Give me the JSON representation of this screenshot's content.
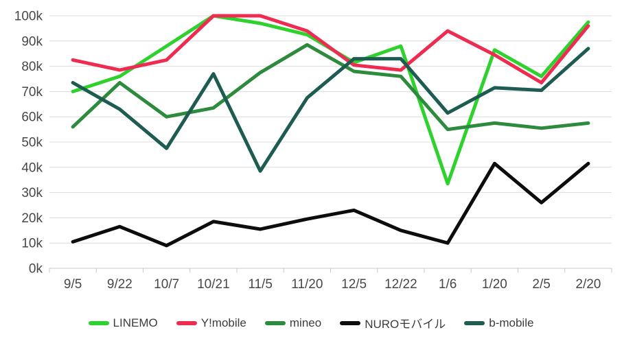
{
  "page": {
    "background": "#ffffff"
  },
  "chart_data": {
    "type": "line",
    "title": "",
    "xlabel": "",
    "ylabel": "",
    "unit": "thousands (k)",
    "categories": [
      "9/5",
      "9/22",
      "10/7",
      "10/21",
      "11/5",
      "11/20",
      "12/5",
      "12/22",
      "1/6",
      "1/20",
      "2/5",
      "2/20"
    ],
    "series": [
      {
        "name": "LINEMO",
        "color": "#2ed12e",
        "values": [
          70,
          76,
          88,
          100,
          97,
          92.5,
          81.5,
          88,
          33.5,
          86.5,
          76,
          97.5
        ]
      },
      {
        "name": "Y!mobile",
        "color": "#ee2c52",
        "values": [
          82.5,
          78.5,
          82.5,
          100,
          100,
          94,
          80.5,
          78.5,
          94,
          84.5,
          73.5,
          96
        ]
      },
      {
        "name": "mineo",
        "color": "#2e8b3e",
        "values": [
          56,
          73.5,
          60,
          63.5,
          77.5,
          88.5,
          78,
          76,
          55,
          57.5,
          55.5,
          57.5
        ]
      },
      {
        "name": "NUROモバイル",
        "color": "#0d0d0d",
        "values": [
          10.5,
          16.5,
          9,
          18.5,
          15.5,
          19.5,
          23,
          15,
          10,
          41.5,
          26,
          41.5
        ]
      },
      {
        "name": "b-mobile",
        "color": "#1e5b50",
        "values": [
          73.5,
          63,
          47.5,
          77,
          38.5,
          67.5,
          83,
          83,
          61.5,
          71.5,
          70.5,
          87
        ]
      }
    ],
    "ylim": [
      0,
      100
    ],
    "ytick_step": 10,
    "y_ticks": [
      "0k",
      "10k",
      "20k",
      "30k",
      "40k",
      "50k",
      "60k",
      "70k",
      "80k",
      "90k",
      "100k"
    ],
    "grid": true,
    "legend_position": "bottom",
    "axis_text_color": "#474747",
    "grid_color": "#dcdcdc",
    "axis_line_color": "#c8c8c8"
  }
}
